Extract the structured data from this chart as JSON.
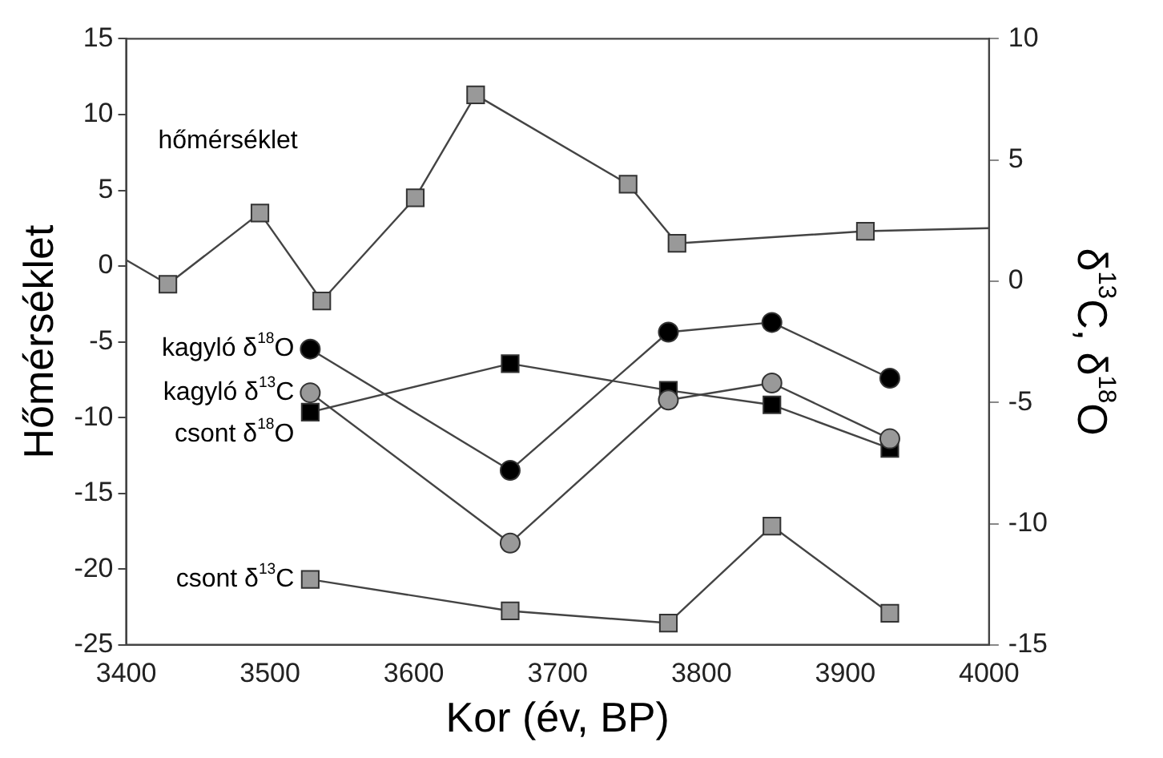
{
  "chart_data": {
    "type": "line",
    "xlabel": "Kor (év, BP)",
    "ylabel": "Hőmérséklet",
    "y2label": "δ$^{13}$C, δ$^{18}$O",
    "xlim": [
      3400,
      4000
    ],
    "xticks": [
      3400,
      3500,
      3600,
      3700,
      3800,
      3900,
      4000
    ],
    "ylim": [
      -25,
      15
    ],
    "yticks": [
      -25,
      -20,
      -15,
      -10,
      -5,
      0,
      5,
      10,
      15
    ],
    "y2lim": [
      -15,
      10
    ],
    "y2ticks": [
      -15,
      -10,
      -5,
      0,
      5,
      10
    ],
    "grid": false,
    "legend": false,
    "line_style": "solid",
    "series": [
      {
        "name": "hőmérséklet",
        "color": "#999999",
        "marker": "square",
        "x": [
          3400,
          3429,
          3493,
          3536,
          3601,
          3643,
          3749,
          3783,
          3914,
          4000
        ],
        "values": [
          0.4,
          -1.2,
          3.5,
          -2.3,
          4.5,
          11.3,
          5.4,
          1.5,
          2.3,
          2.5
        ]
      },
      {
        "name": "kagyló δ$^{18}$O",
        "color": "#000000",
        "marker": "circle",
        "axis": "y2",
        "x": [
          3528,
          3667,
          3777,
          3849,
          3931
        ],
        "values": [
          -2.8,
          -7.8,
          -2.1,
          -1.7,
          -4.0
        ]
      },
      {
        "name": "kagyló δ$^{13}$C",
        "color": "#999999",
        "marker": "circle",
        "axis": "y2",
        "x": [
          3528,
          3667,
          3777,
          3849,
          3931
        ],
        "values": [
          -4.6,
          -10.8,
          -4.9,
          -4.2,
          -6.5
        ]
      },
      {
        "name": "csont δ$^{18}$O",
        "color": "#000000",
        "marker": "square",
        "axis": "y2",
        "x": [
          3528,
          3667,
          3777,
          3849,
          3931
        ],
        "values": [
          -5.4,
          -3.4,
          -4.5,
          -5.1,
          -6.9
        ]
      },
      {
        "name": "csont δ$^{13}$C",
        "color": "#999999",
        "marker": "square",
        "axis": "y2",
        "x": [
          3528,
          3667,
          3777,
          3849,
          3931
        ],
        "values": [
          -12.3,
          -13.6,
          -14.1,
          -10.1,
          -13.7
        ]
      }
    ]
  }
}
